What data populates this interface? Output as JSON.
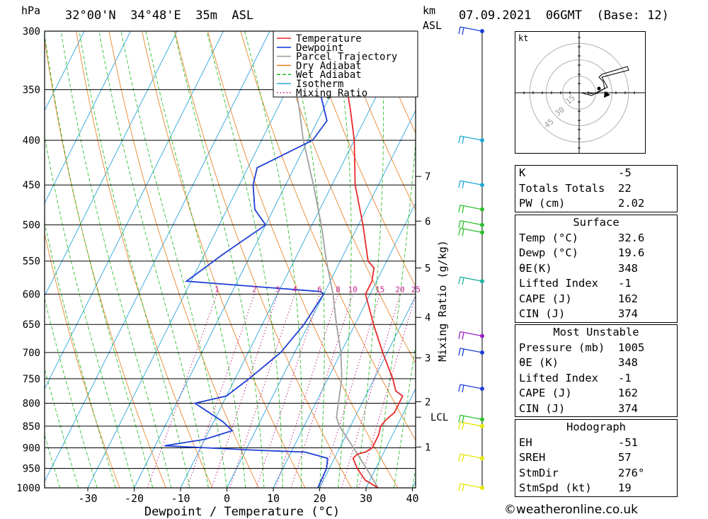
{
  "header": {
    "pressure_unit": "hPa",
    "location": "32°00'N  34°48'E  35m  ASL",
    "height_unit_line1": "km",
    "height_unit_line2": "ASL",
    "datetime": "07.09.2021  06GMT  (Base: 12)"
  },
  "chart_data": {
    "type": "skew-t log-p",
    "xlabel": "Dewpoint / Temperature (°C)",
    "ylabel_left": "hPa",
    "mixing_ratio_axis_label": "Mixing Ratio (g/kg)",
    "x_ticks": [
      -30,
      -20,
      -10,
      0,
      10,
      20,
      30,
      40
    ],
    "y_ticks": [
      300,
      350,
      400,
      450,
      500,
      550,
      600,
      650,
      700,
      750,
      800,
      850,
      900,
      950,
      1000
    ],
    "pressure_range": [
      1000,
      300
    ],
    "km_ticks": [
      {
        "label": "7",
        "p": 440
      },
      {
        "label": "6",
        "p": 495
      },
      {
        "label": "5",
        "p": 560
      },
      {
        "label": "4",
        "p": 638
      },
      {
        "label": "3",
        "p": 710
      },
      {
        "label": "2",
        "p": 797
      },
      {
        "label": "1",
        "p": 898
      }
    ],
    "lcl_label": "LCL",
    "lcl_pressure": 830,
    "mixing_ratio_labels": [
      "1",
      "2",
      "3",
      "4",
      "6",
      "8",
      "10",
      "15",
      "20",
      "25"
    ],
    "mixing_ratio_values": [
      1,
      2,
      3,
      4,
      6,
      8,
      10,
      15,
      20,
      25
    ],
    "legend": [
      {
        "name": "Temperature",
        "color": "#e8292c",
        "dash": "solid"
      },
      {
        "name": "Dewpoint",
        "color": "#1f3fd6",
        "dash": "solid"
      },
      {
        "name": "Parcel Trajectory",
        "color": "#a0a0a0",
        "dash": "solid"
      },
      {
        "name": "Dry Adiabat",
        "color": "#e8872e",
        "dash": "solid"
      },
      {
        "name": "Wet Adiabat",
        "color": "#2fbf2f",
        "dash": "dash"
      },
      {
        "name": "Isotherm",
        "color": "#2aa6de",
        "dash": "solid"
      },
      {
        "name": "Mixing Ratio",
        "color": "#c0208a",
        "dash": "dot"
      }
    ],
    "temperature": [
      [
        1000,
        32.6
      ],
      [
        980,
        29
      ],
      [
        950,
        26
      ],
      [
        925,
        24
      ],
      [
        915,
        24.5
      ],
      [
        910,
        26
      ],
      [
        900,
        27
      ],
      [
        870,
        27
      ],
      [
        850,
        26.5
      ],
      [
        835,
        27
      ],
      [
        820,
        28
      ],
      [
        800,
        28
      ],
      [
        785,
        28
      ],
      [
        775,
        26
      ],
      [
        750,
        24
      ],
      [
        700,
        19
      ],
      [
        650,
        14
      ],
      [
        600,
        9
      ],
      [
        580,
        9
      ],
      [
        560,
        8
      ],
      [
        550,
        6
      ],
      [
        500,
        1
      ],
      [
        450,
        -5
      ],
      [
        400,
        -10
      ],
      [
        370,
        -14
      ],
      [
        350,
        -17
      ],
      [
        330,
        -20
      ]
    ],
    "dewpoint": [
      [
        1000,
        19.6
      ],
      [
        950,
        19.4
      ],
      [
        925,
        18.5
      ],
      [
        910,
        13
      ],
      [
        905,
        1
      ],
      [
        895,
        -18
      ],
      [
        880,
        -10
      ],
      [
        860,
        -5
      ],
      [
        840,
        -8
      ],
      [
        800,
        -16
      ],
      [
        785,
        -10
      ],
      [
        750,
        -7
      ],
      [
        700,
        -3
      ],
      [
        650,
        -1
      ],
      [
        600,
        0
      ],
      [
        596,
        -1
      ],
      [
        580,
        -31
      ],
      [
        540,
        -26
      ],
      [
        500,
        -20
      ],
      [
        480,
        -24
      ],
      [
        450,
        -27
      ],
      [
        430,
        -28
      ],
      [
        400,
        -19
      ],
      [
        380,
        -18
      ],
      [
        350,
        -23
      ],
      [
        300,
        -35
      ]
    ],
    "parcel": [
      [
        1000,
        32.6
      ],
      [
        950,
        28
      ],
      [
        900,
        23
      ],
      [
        850,
        17.6
      ],
      [
        830,
        16
      ],
      [
        750,
        13
      ],
      [
        700,
        10
      ],
      [
        650,
        6
      ],
      [
        600,
        2
      ],
      [
        550,
        -3
      ],
      [
        500,
        -8
      ],
      [
        450,
        -14
      ],
      [
        400,
        -21
      ],
      [
        370,
        -25
      ],
      [
        350,
        -28
      ],
      [
        330,
        -31
      ]
    ],
    "hodograph": {
      "unit": "kt",
      "ring_labels": [
        "15",
        "30",
        "45"
      ],
      "rings": [
        15,
        30,
        45
      ]
    },
    "wind_barbs": [
      {
        "p": 1000,
        "color": "#e6e600"
      },
      {
        "p": 925,
        "color": "#e6e600"
      },
      {
        "p": 850,
        "color": "#e6e600"
      },
      {
        "p": 835,
        "color": "#2fbf2f"
      },
      {
        "p": 770,
        "color": "#1f3fd6"
      },
      {
        "p": 700,
        "color": "#1f3fd6"
      },
      {
        "p": 670,
        "color": "#9a1fc4"
      },
      {
        "p": 580,
        "color": "#20b3a0"
      },
      {
        "p": 510,
        "color": "#2fbf2f"
      },
      {
        "p": 500,
        "color": "#2fbf2f"
      },
      {
        "p": 480,
        "color": "#2fbf2f"
      },
      {
        "p": 450,
        "color": "#20a8d6"
      },
      {
        "p": 400,
        "color": "#20a8d6"
      },
      {
        "p": 300,
        "color": "#1f3fd6"
      }
    ]
  },
  "indices": [
    {
      "label": "K",
      "value": "-5"
    },
    {
      "label": "Totals Totals",
      "value": "22"
    },
    {
      "label": "PW (cm)",
      "value": "2.02"
    }
  ],
  "surface": {
    "title": "Surface",
    "rows": [
      {
        "label": "Temp (°C)",
        "value": "32.6"
      },
      {
        "label": "Dewp (°C)",
        "value": "19.6"
      },
      {
        "label": "θE(K)",
        "value": "348"
      },
      {
        "label": "Lifted Index",
        "value": "-1"
      },
      {
        "label": "CAPE (J)",
        "value": "162"
      },
      {
        "label": "CIN (J)",
        "value": "374"
      }
    ]
  },
  "most_unstable": {
    "title": "Most Unstable",
    "rows": [
      {
        "label": "Pressure (mb)",
        "value": "1005"
      },
      {
        "label": "θE (K)",
        "value": "348"
      },
      {
        "label": "Lifted Index",
        "value": "-1"
      },
      {
        "label": "CAPE (J)",
        "value": "162"
      },
      {
        "label": "CIN (J)",
        "value": "374"
      }
    ]
  },
  "hodograph_box": {
    "title": "Hodograph",
    "rows": [
      {
        "label": "EH",
        "value": "-51"
      },
      {
        "label": "SREH",
        "value": "57"
      },
      {
        "label": "StmDir",
        "value": "276°"
      },
      {
        "label": "StmSpd (kt)",
        "value": "19"
      }
    ]
  },
  "credit": "©weatheronline.co.uk"
}
